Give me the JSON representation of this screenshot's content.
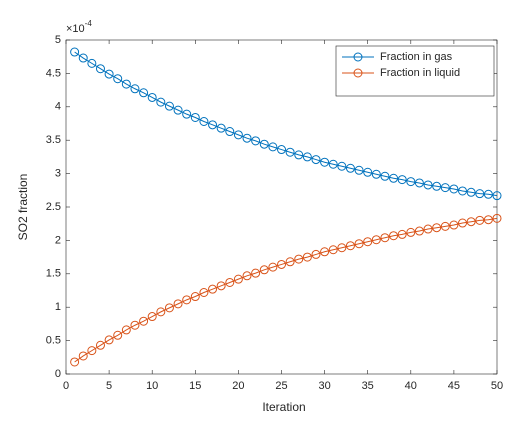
{
  "chart_data": {
    "type": "line",
    "x_label": "Iteration",
    "y_label": "SO2 fraction",
    "y_scale_base": "×10",
    "y_scale_exponent": "-4",
    "x": [
      1,
      2,
      3,
      4,
      5,
      6,
      7,
      8,
      9,
      10,
      11,
      12,
      13,
      14,
      15,
      16,
      17,
      18,
      19,
      20,
      21,
      22,
      23,
      24,
      25,
      26,
      27,
      28,
      29,
      30,
      31,
      32,
      33,
      34,
      35,
      36,
      37,
      38,
      39,
      40,
      41,
      42,
      43,
      44,
      45,
      46,
      47,
      48,
      49,
      50
    ],
    "series": [
      {
        "name": "Fraction in gas",
        "color": "#0072bd",
        "values": [
          4.82,
          4.73,
          4.65,
          4.57,
          4.49,
          4.42,
          4.34,
          4.27,
          4.21,
          4.14,
          4.07,
          4.01,
          3.95,
          3.89,
          3.84,
          3.78,
          3.73,
          3.68,
          3.63,
          3.58,
          3.53,
          3.49,
          3.44,
          3.4,
          3.36,
          3.32,
          3.28,
          3.25,
          3.21,
          3.17,
          3.14,
          3.11,
          3.08,
          3.05,
          3.02,
          2.99,
          2.96,
          2.93,
          2.91,
          2.88,
          2.86,
          2.83,
          2.81,
          2.79,
          2.77,
          2.74,
          2.72,
          2.7,
          2.69,
          2.67
        ]
      },
      {
        "name": "Fraction in liquid",
        "color": "#d95319",
        "values": [
          0.18,
          0.27,
          0.35,
          0.43,
          0.51,
          0.58,
          0.66,
          0.73,
          0.79,
          0.86,
          0.93,
          0.99,
          1.05,
          1.11,
          1.16,
          1.22,
          1.27,
          1.32,
          1.37,
          1.42,
          1.47,
          1.51,
          1.56,
          1.6,
          1.64,
          1.68,
          1.72,
          1.75,
          1.79,
          1.83,
          1.86,
          1.89,
          1.92,
          1.95,
          1.98,
          2.01,
          2.04,
          2.07,
          2.09,
          2.12,
          2.14,
          2.17,
          2.19,
          2.21,
          2.23,
          2.26,
          2.28,
          2.3,
          2.31,
          2.33
        ]
      }
    ],
    "xlim": [
      0,
      50
    ],
    "xticks": [
      0,
      5,
      10,
      15,
      20,
      25,
      30,
      35,
      40,
      45,
      50
    ],
    "ylim": [
      0,
      5
    ],
    "yticks": [
      0,
      0.5,
      1,
      1.5,
      2,
      2.5,
      3,
      3.5,
      4,
      4.5,
      5
    ],
    "marker": "circle",
    "legend": "top-right"
  }
}
